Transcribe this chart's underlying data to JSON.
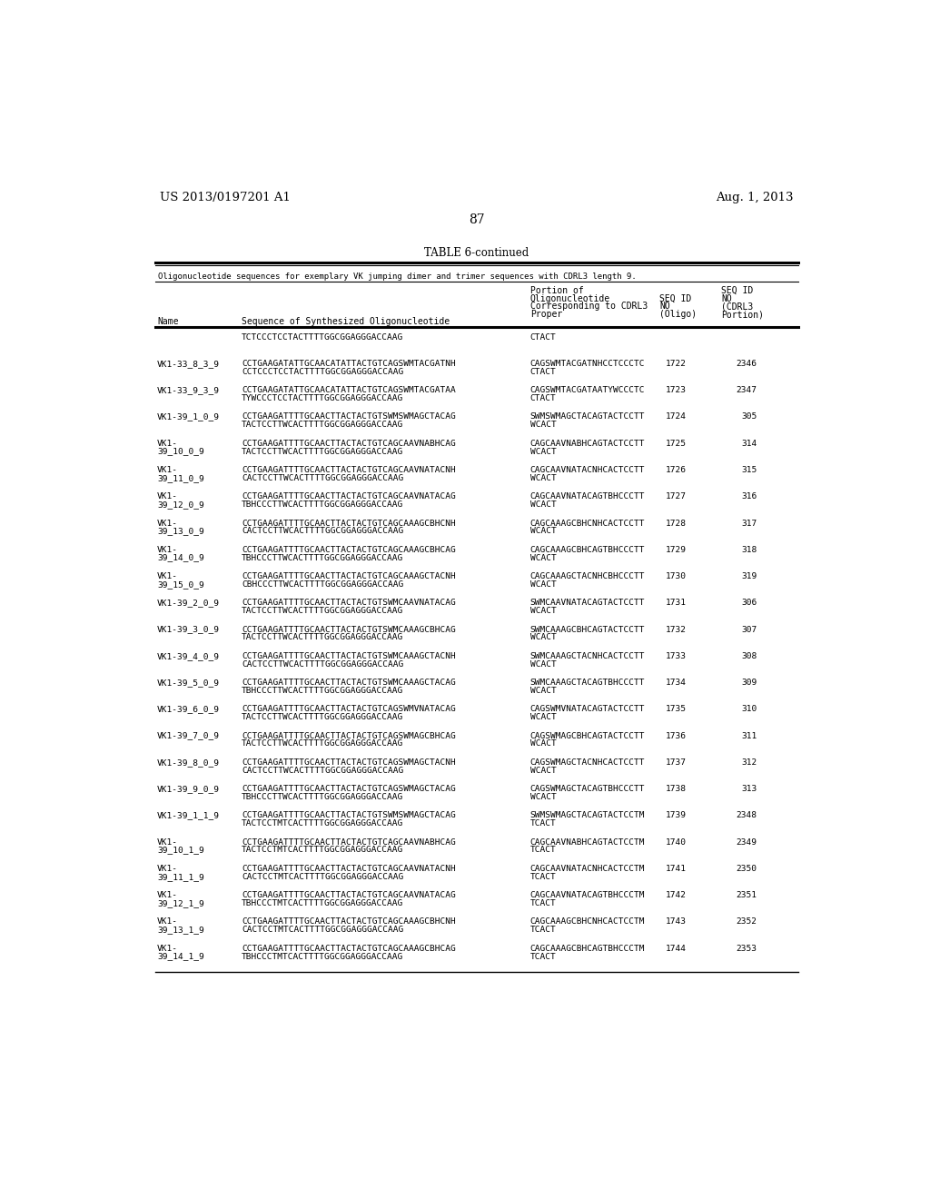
{
  "patent_left": "US 2013/0197201 A1",
  "patent_right": "Aug. 1, 2013",
  "page_number": "87",
  "table_title": "TABLE 6-continued",
  "table_subtitle": "Oligonucleotide sequences for exemplary VK jumping dimer and trimer sequences with CDRL3 length 9.",
  "rows": [
    [
      "",
      "TCTCCCTCCTACTTTTGGCGGAGGGACCAAG",
      "CTACT",
      "",
      ""
    ],
    [
      "VK1-33_8_3_9",
      "CCTGAAGATATTGCAACATATTACTGTCAGSWMTACGATNH\nCCTCCCTCCTACTTTTGGCGGAGGGACCAAG",
      "CAGSWMTACGATNHCCTCCCTC\nCTACT",
      "1722",
      "2346"
    ],
    [
      "VK1-33_9_3_9",
      "CCTGAAGATATTGCAACATATTACTGTCAGSWMTACGATAA\nTYWCCCTCCTACTTTTGGCGGAGGGACCAAG",
      "CAGSWMTACGATAATYWCCCTC\nCTACT",
      "1723",
      "2347"
    ],
    [
      "VK1-39_1_0_9",
      "CCTGAAGATTTTGCAACTTACTACTGTSWMSWMAGCTACAG\nTACTCCTTWCACTTTTGGCGGAGGGACCAAG",
      "SWMSWMAGCTACAGTACTCCTT\nWCACT",
      "1724",
      "305"
    ],
    [
      "VK1-\n39_10_0_9",
      "CCTGAAGATTTTGCAACTTACTACTGTCAGCAAVNABHCAG\nTACTCCTTWCACTTTTGGCGGAGGGACCAAG",
      "CAGCAAVNABHCAGTACTCCTT\nWCACT",
      "1725",
      "314"
    ],
    [
      "VK1-\n39_11_0_9",
      "CCTGAAGATTTTGCAACTTACTACTGTCAGCAAVNATACNH\nCACTCCTTWCACTTTTGGCGGAGGGACCAAG",
      "CAGCAAVNATACNHCACTCCTT\nWCACT",
      "1726",
      "315"
    ],
    [
      "VK1-\n39_12_0_9",
      "CCTGAAGATTTTGCAACTTACTACTGTCAGCAAVNATACAG\nTBHCCCTTWCACTTTTGGCGGAGGGACCAAG",
      "CAGCAAVNATACAGTBHCCCTT\nWCACT",
      "1727",
      "316"
    ],
    [
      "VK1-\n39_13_0_9",
      "CCTGAAGATTTTGCAACTTACTACTGTCAGCAAAGCBHCNH\nCACTCCTTWCACTTTTGGCGGAGGGACCAAG",
      "CAGCAAAGCBHCNHCACTCCTT\nWCACT",
      "1728",
      "317"
    ],
    [
      "VK1-\n39_14_0_9",
      "CCTGAAGATTTTGCAACTTACTACTGTCAGCAAAGCBHCAG\nTBHCCCTTWCACTTTTGGCGGAGGGACCAAG",
      "CAGCAAAGCBHCAGTBHCCCTT\nWCACT",
      "1729",
      "318"
    ],
    [
      "VK1-\n39_15_0_9",
      "CCTGAAGATTTTGCAACTTACTACTGTCAGCAAAGCTACNH\nCBHCCCTTWCACTTTTGGCGGAGGGACCAAG",
      "CAGCAAAGCTACNHCBHCCCTT\nWCACT",
      "1730",
      "319"
    ],
    [
      "VK1-39_2_0_9",
      "CCTGAAGATTTTGCAACTTACTACTGTSWMCAAVNATACAG\nTACTCCTTWCACTTTTGGCGGAGGGACCAAG",
      "SWMCAAVNATACAGTACTCCTT\nWCACT",
      "1731",
      "306"
    ],
    [
      "VK1-39_3_0_9",
      "CCTGAAGATTTTGCAACTTACTACTGTSWMCAAAGCBHCAG\nTACTCCTTWCACTTTTGGCGGAGGGACCAAG",
      "SWMCAAAGCBHCAGTACTCCTT\nWCACT",
      "1732",
      "307"
    ],
    [
      "VK1-39_4_0_9",
      "CCTGAAGATTTTGCAACTTACTACTGTSWMCAAAGCTACNH\nCACTCCTTWCACTTTTGGCGGAGGGACCAAG",
      "SWMCAAAGCTACNHCACTCCTT\nWCACT",
      "1733",
      "308"
    ],
    [
      "VK1-39_5_0_9",
      "CCTGAAGATTTTGCAACTTACTACTGTSWMCAAAGCTACAG\nTBHCCCTTWCACTTTTGGCGGAGGGACCAAG",
      "SWMCAAAGCTACAGTBHCCCTT\nWCACT",
      "1734",
      "309"
    ],
    [
      "VK1-39_6_0_9",
      "CCTGAAGATTTTGCAACTTACTACTGTCAGSWMVNATACAG\nTACTCCTTWCACTTTTGGCGGAGGGACCAAG",
      "CAGSWMVNATACAGTACTCCTT\nWCACT",
      "1735",
      "310"
    ],
    [
      "VK1-39_7_0_9",
      "CCTGAAGATTTTGCAACTTACTACTGTCAGSWMAGCBHCAG\nTACTCCTTWCACTTTTGGCGGAGGGACCAAG",
      "CAGSWMAGCBHCAGTACTCCTT\nWCACT",
      "1736",
      "311"
    ],
    [
      "VK1-39_8_0_9",
      "CCTGAAGATTTTGCAACTTACTACTGTCAGSWMAGCTACNH\nCACTCCTTWCACTTTTGGCGGAGGGACCAAG",
      "CAGSWMAGCTACNHCACTCCTT\nWCACT",
      "1737",
      "312"
    ],
    [
      "VK1-39_9_0_9",
      "CCTGAAGATTTTGCAACTTACTACTGTCAGSWMAGCTACAG\nTBHCCCTTWCACTTTTGGCGGAGGGACCAAG",
      "CAGSWMAGCTACAGTBHCCCTT\nWCACT",
      "1738",
      "313"
    ],
    [
      "VK1-39_1_1_9",
      "CCTGAAGATTTTGCAACTTACTACTGTSWMSWMAGCTACAG\nTACTCCTMTCACTTTTGGCGGAGGGACCAAG",
      "SWMSWMAGCTACAGTACTCCTM\nTCACT",
      "1739",
      "2348"
    ],
    [
      "VK1-\n39_10_1_9",
      "CCTGAAGATTTTGCAACTTACTACTGTCAGCAAVNABHCAG\nTACTCCTMTCACTTTTGGCGGAGGGACCAAG",
      "CAGCAAVNABHCAGTACTCCTM\nTCACT",
      "1740",
      "2349"
    ],
    [
      "VK1-\n39_11_1_9",
      "CCTGAAGATTTTGCAACTTACTACTGTCAGCAAVNATACNH\nCACTCCTMTCACTTTTGGCGGAGGGACCAAG",
      "CAGCAAVNATACNHCACTCCTM\nTCACT",
      "1741",
      "2350"
    ],
    [
      "VK1-\n39_12_1_9",
      "CCTGAAGATTTTGCAACTTACTACTGTCAGCAAVNATACAG\nTBHCCCTMTCACTTTTGGCGGAGGGACCAAG",
      "CAGCAAVNATACAGTBHCCCTM\nTCACT",
      "1742",
      "2351"
    ],
    [
      "VK1-\n39_13_1_9",
      "CCTGAAGATTTTGCAACTTACTACTGTCAGCAAAGCBHCNH\nCACTCCTMTCACTTTTGGCGGAGGGACCAAG",
      "CAGCAAAGCBHCNHCACTCCTM\nTCACT",
      "1743",
      "2352"
    ],
    [
      "VK1-\n39_14_1_9",
      "CCTGAAGATTTTGCAACTTACTACTGTCAGCAAAGCBHCAG\nTBHCCCTMTCACTTTTGGCGGAGGGACCAAG",
      "CAGCAAAGCBHCAGTBHCCCTM\nTCACT",
      "1744",
      "2353"
    ]
  ],
  "bg_color": "#ffffff",
  "text_color": "#000000"
}
